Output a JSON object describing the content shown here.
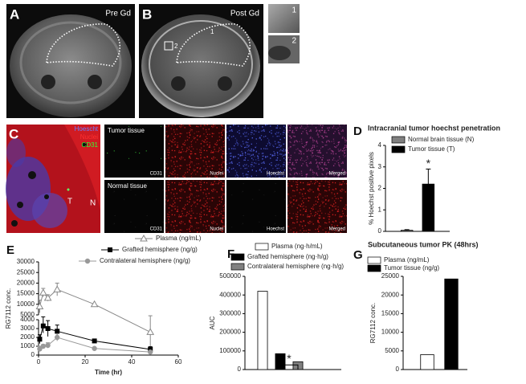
{
  "panels": {
    "a": {
      "label": "A",
      "caption": "Pre Gd"
    },
    "b": {
      "label": "B",
      "caption": "Post Gd",
      "roi": [
        "1",
        "2"
      ]
    },
    "insets": [
      "1",
      "2"
    ],
    "c": {
      "label": "C",
      "stains": [
        "Hoescht",
        "Nuclei",
        "CD31"
      ],
      "regions": [
        "T",
        "N"
      ],
      "rows": [
        "Tumor tissue",
        "Normal tissue"
      ],
      "columns": [
        "CD31",
        "Nuclei",
        "Hoechst",
        "Merged"
      ]
    }
  },
  "chart_data": [
    {
      "label": "D",
      "type": "bar",
      "title": "Intracranial tumor hoechst penetration",
      "y_label": "% Hoechst positive pixels",
      "ylim": [
        0,
        4
      ],
      "yticks": [
        0,
        1,
        2,
        3,
        4
      ],
      "annotation": "*",
      "series": [
        {
          "name": "Normal brain tissue (N)",
          "color": "#808080",
          "values": [
            0.05
          ],
          "errors": [
            0.03
          ]
        },
        {
          "name": "Tumor tissue (T)",
          "color": "#000000",
          "values": [
            2.2
          ],
          "errors": [
            0.7
          ]
        }
      ]
    },
    {
      "label": "E",
      "type": "line",
      "y_label": "RG7112 conc.",
      "x_label": "Time (hr)",
      "x": [
        0.5,
        2,
        4,
        8,
        24,
        48
      ],
      "xlim": [
        0,
        60
      ],
      "xticks": [
        0,
        20,
        40,
        60
      ],
      "ylim": [
        0,
        30000
      ],
      "ybreak": [
        4000,
        5000
      ],
      "yticks": [
        0,
        1000,
        2000,
        3000,
        4000,
        5000,
        10000,
        15000,
        20000,
        25000,
        30000
      ],
      "series": [
        {
          "name": "Plasma (ng/mL)",
          "color": "#888888",
          "marker": "triangle",
          "values": [
            9000,
            15500,
            13000,
            17000,
            10000,
            2600
          ],
          "errors": [
            3000,
            2000,
            1500,
            3000,
            null,
            2000
          ]
        },
        {
          "name": "Grafted hemisphere (ng/g)",
          "color": "#000000",
          "marker": "square",
          "values": [
            1800,
            3300,
            3000,
            2700,
            1600,
            650
          ],
          "errors": [
            500,
            800,
            900,
            700,
            200,
            300
          ]
        },
        {
          "name": "Contralateral hemisphere (ng/g)",
          "color": "#999999",
          "marker": "circle",
          "values": [
            700,
            1000,
            1100,
            2000,
            750,
            350
          ],
          "errors": [
            300,
            200,
            300,
            400,
            100,
            100
          ]
        }
      ]
    },
    {
      "label": "F",
      "type": "bar",
      "y_label": "AUC",
      "ylim": [
        0,
        500000
      ],
      "yticks": [
        0,
        100000,
        200000,
        300000,
        400000,
        500000
      ],
      "annotation": "*",
      "series": [
        {
          "name": "Plasma (ng·h/mL)",
          "color": "#ffffff",
          "values": [
            420000
          ]
        },
        {
          "name": "Grafted hemisphere (ng·h/g)",
          "color": "#000000",
          "values": [
            85000
          ]
        },
        {
          "name": "Contralateral hemisphere (ng·h/g)",
          "color": "#808080",
          "values": [
            42000
          ]
        }
      ]
    },
    {
      "label": "G",
      "type": "bar",
      "title": "Subcutaneous tumor PK (48hrs)",
      "y_label": "RG7112 conc.",
      "ylim": [
        0,
        25000
      ],
      "yticks": [
        0,
        5000,
        10000,
        15000,
        20000,
        25000
      ],
      "series": [
        {
          "name": "Plasma (ng/mL)",
          "color": "#ffffff",
          "values": [
            4000
          ]
        },
        {
          "name": "Tumor tissue (ng/g)",
          "color": "#000000",
          "values": [
            24300
          ]
        }
      ]
    }
  ]
}
